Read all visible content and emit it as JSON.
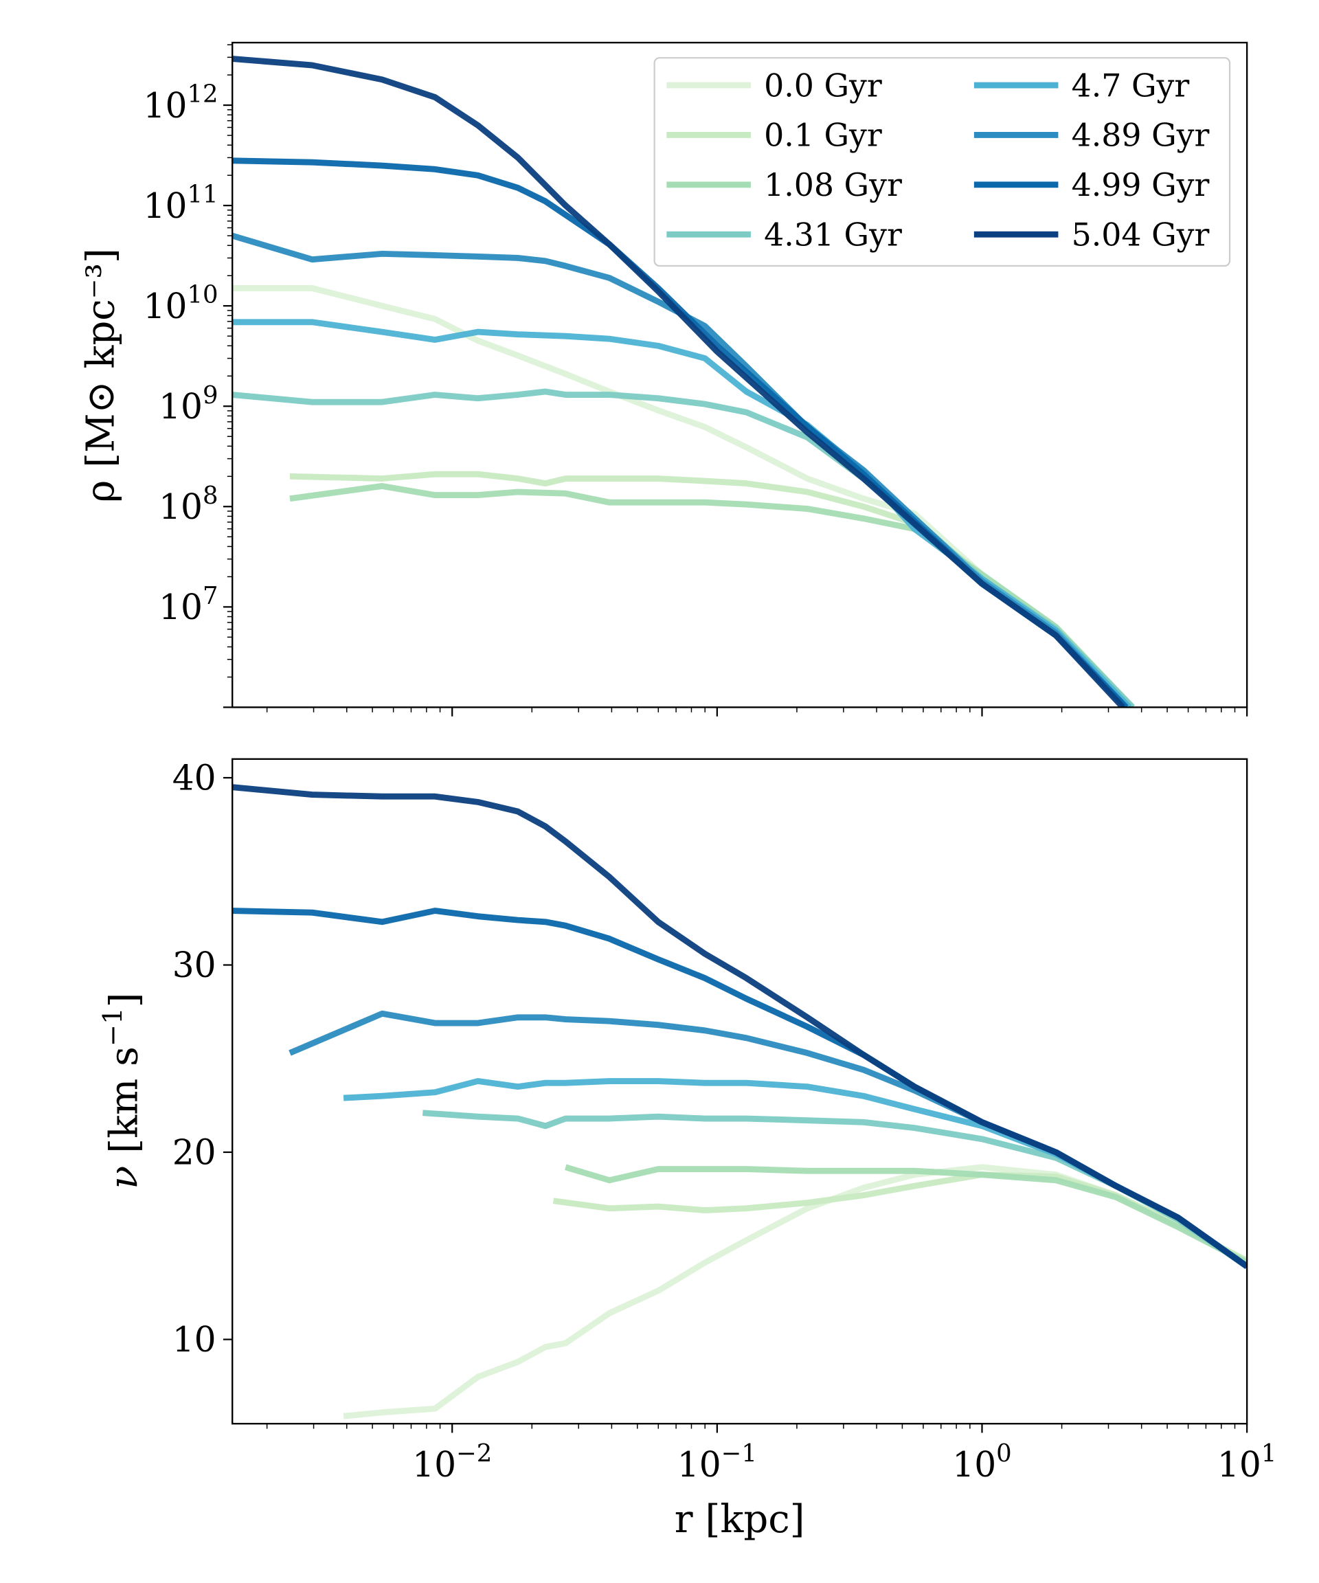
{
  "chart_data": [
    {
      "type": "line",
      "panel": "top",
      "xscale": "log",
      "yscale": "log",
      "xlim": [
        0.00148,
        10
      ],
      "ylim": [
        1000000.0,
        4200000000000.0
      ],
      "xlabel": "",
      "ylabel": "ρ [M⊙ kpc⁻³]",
      "ylabel_parts": {
        "sym": "ρ",
        "unit_open": " [M",
        "sun": "⊙",
        "unit_mid": " kpc",
        "exp": "−3",
        "unit_close": "]"
      },
      "xticks": [
        0.01,
        0.1,
        1,
        10
      ],
      "yticks": [
        {
          "value": 1000000000000.0,
          "base": "10",
          "exp": "12"
        },
        {
          "value": 100000000000.0,
          "base": "10",
          "exp": "11"
        },
        {
          "value": 10000000000.0,
          "base": "10",
          "exp": "10"
        },
        {
          "value": 1000000000.0,
          "base": "10",
          "exp": "9"
        },
        {
          "value": 100000000.0,
          "base": "10",
          "exp": "8"
        },
        {
          "value": 10000000.0,
          "base": "10",
          "exp": "7"
        }
      ],
      "legend": {
        "placement": "upper right",
        "columns": 2
      },
      "series": [
        {
          "name": "0.0 Gyr",
          "color": "#ddf2d8",
          "x": [
            0.00148,
            0.00296,
            0.00544,
            0.00861,
            0.0125,
            0.0177,
            0.0268,
            0.0392,
            0.0599,
            0.0899,
            0.129,
            0.219,
            0.357,
            0.556,
            1.0,
            1.9,
            3.7
          ],
          "y": [
            15000000000.0,
            15000000000.0,
            10000000000.0,
            7400000000.0,
            4500000000.0,
            3200000000.0,
            2100000000.0,
            1400000000.0,
            910000000.0,
            620000000.0,
            390000000.0,
            190000000.0,
            120000000.0,
            85000000.0,
            21000000.0,
            6000000.0,
            1000000.0
          ]
        },
        {
          "name": "0.1 Gyr",
          "color": "#c8eac2",
          "x": [
            0.00244,
            0.00544,
            0.00861,
            0.0125,
            0.0177,
            0.0225,
            0.0268,
            0.0392,
            0.0599,
            0.0899,
            0.129,
            0.219,
            0.357,
            0.556,
            1.0,
            1.9,
            3.7
          ],
          "y": [
            200000000.0,
            190000000.0,
            210000000.0,
            210000000.0,
            190000000.0,
            170000000.0,
            190000000.0,
            190000000.0,
            190000000.0,
            180000000.0,
            170000000.0,
            140000000.0,
            100000000.0,
            68000000.0,
            21000000.0,
            6300000.0,
            1000000.0
          ]
        },
        {
          "name": "1.08 Gyr",
          "color": "#a4dcb3",
          "x": [
            0.00244,
            0.00544,
            0.00861,
            0.0125,
            0.0177,
            0.0268,
            0.0392,
            0.0599,
            0.0899,
            0.129,
            0.219,
            0.357,
            0.556,
            1.0,
            1.9,
            3.7
          ],
          "y": [
            120000000.0,
            160000000.0,
            130000000.0,
            130000000.0,
            140000000.0,
            135000000.0,
            110000000.0,
            110000000.0,
            110000000.0,
            105000000.0,
            95000000.0,
            76000000.0,
            60000000.0,
            21000000.0,
            6300000.0,
            1000000.0
          ]
        },
        {
          "name": "4.31 Gyr",
          "color": "#7ccbc4",
          "x": [
            0.00148,
            0.00296,
            0.00544,
            0.00861,
            0.0125,
            0.0177,
            0.0225,
            0.0268,
            0.0392,
            0.0599,
            0.0899,
            0.129,
            0.219,
            0.357,
            0.556,
            1.0,
            1.9,
            3.7
          ],
          "y": [
            1300000000.0,
            1100000000.0,
            1100000000.0,
            1300000000.0,
            1200000000.0,
            1300000000.0,
            1400000000.0,
            1300000000.0,
            1300000000.0,
            1200000000.0,
            1050000000.0,
            870000000.0,
            490000000.0,
            190000000.0,
            76000000.0,
            19000000.0,
            6000000.0,
            1000000.0
          ]
        },
        {
          "name": "4.7 Gyr",
          "color": "#4cb2d4",
          "x": [
            0.00148,
            0.00296,
            0.00544,
            0.00861,
            0.0125,
            0.0177,
            0.0268,
            0.0392,
            0.0599,
            0.0899,
            0.129,
            0.219,
            0.357,
            0.556,
            1.0,
            1.9,
            3.6
          ],
          "y": [
            6900000000.0,
            6900000000.0,
            5500000000.0,
            4600000000.0,
            5500000000.0,
            5200000000.0,
            5000000000.0,
            4700000000.0,
            4000000000.0,
            3000000000.0,
            1400000000.0,
            650000000.0,
            220000000.0,
            60000000.0,
            19000000.0,
            5800000.0,
            1000000.0
          ]
        },
        {
          "name": "4.89 Gyr",
          "color": "#2a8cc0",
          "x": [
            0.00148,
            0.00296,
            0.00544,
            0.00861,
            0.0125,
            0.0177,
            0.0225,
            0.0268,
            0.0392,
            0.0599,
            0.0899,
            0.129,
            0.219,
            0.357,
            1.0,
            1.9,
            3.5
          ],
          "y": [
            50000000000.0,
            29000000000.0,
            33000000000.0,
            32000000000.0,
            31000000000.0,
            30000000000.0,
            28000000000.0,
            25000000000.0,
            19000000000.0,
            11000000000.0,
            6300000000.0,
            2500000000.0,
            620000000.0,
            230000000.0,
            18000000.0,
            5500000.0,
            1000000.0
          ]
        },
        {
          "name": "4.99 Gyr",
          "color": "#0a68ab",
          "x": [
            0.00148,
            0.00296,
            0.00544,
            0.00861,
            0.0125,
            0.0177,
            0.0225,
            0.0392,
            0.0599,
            0.1,
            0.219,
            0.357,
            1.0,
            1.9,
            3.5
          ],
          "y": [
            280000000000.0,
            270000000000.0,
            250000000000.0,
            230000000000.0,
            200000000000.0,
            150000000000.0,
            110000000000.0,
            41000000000.0,
            15000000000.0,
            4000000000.0,
            630000000.0,
            210000000.0,
            17000000.0,
            5200000.0,
            1000000.0
          ]
        },
        {
          "name": "5.04 Gyr",
          "color": "#0a3f80",
          "x": [
            0.00148,
            0.00296,
            0.00544,
            0.00861,
            0.0125,
            0.0177,
            0.0268,
            0.0392,
            0.0599,
            0.1,
            0.219,
            0.357,
            1.0,
            1.9,
            3.4
          ],
          "y": [
            2900000000000.0,
            2500000000000.0,
            1800000000000.0,
            1200000000000.0,
            630000000000.0,
            300000000000.0,
            100000000000.0,
            41000000000.0,
            14000000000.0,
            3500000000.0,
            550000000.0,
            190000000.0,
            17000000.0,
            5200000.0,
            1000000.0
          ]
        }
      ]
    },
    {
      "type": "line",
      "panel": "bottom",
      "xscale": "log",
      "yscale": "linear",
      "xlim": [
        0.00148,
        10
      ],
      "ylim": [
        5.5,
        41.0
      ],
      "xlabel": "r [kpc]",
      "ylabel": "ν [km s⁻¹]",
      "ylabel_parts": {
        "sym": "ν",
        "unit_open": " [km s",
        "exp": "−1",
        "unit_close": "]"
      },
      "xticks": [
        {
          "value": 0.01,
          "base": "10",
          "exp": "−2"
        },
        {
          "value": 0.1,
          "base": "10",
          "exp": "−1"
        },
        {
          "value": 1,
          "base": "10",
          "exp": "0"
        },
        {
          "value": 10,
          "base": "10",
          "exp": "1"
        }
      ],
      "yticks": [
        {
          "value": 10,
          "label": "10"
        },
        {
          "value": 20,
          "label": "20"
        },
        {
          "value": 30,
          "label": "30"
        },
        {
          "value": 40,
          "label": "40"
        }
      ],
      "series": [
        {
          "name": "0.0 Gyr",
          "x": [
            0.00389,
            0.00544,
            0.00861,
            0.0125,
            0.0177,
            0.0225,
            0.0268,
            0.0392,
            0.0599,
            0.0899,
            0.129,
            0.219,
            0.357,
            0.556,
            1.0,
            1.9,
            3.2,
            5.5,
            10
          ],
          "y": [
            5.9,
            6.1,
            6.3,
            8.0,
            8.8,
            9.6,
            9.8,
            11.4,
            12.6,
            14.1,
            15.3,
            17.0,
            18.1,
            18.8,
            19.2,
            18.8,
            17.7,
            16.1,
            14.2
          ]
        },
        {
          "name": "0.1 Gyr",
          "x": [
            0.0241,
            0.0392,
            0.0599,
            0.0899,
            0.129,
            0.219,
            0.357,
            0.556,
            1.0,
            1.9,
            3.2,
            5.5,
            10
          ],
          "y": [
            17.4,
            17.0,
            17.1,
            16.9,
            17.0,
            17.3,
            17.7,
            18.2,
            18.8,
            18.7,
            17.7,
            16.1,
            14.2
          ]
        },
        {
          "name": "1.08 Gyr",
          "x": [
            0.0268,
            0.0392,
            0.0599,
            0.0899,
            0.129,
            0.219,
            0.357,
            0.556,
            1.0,
            1.9,
            3.2,
            5.5,
            10
          ],
          "y": [
            19.2,
            18.5,
            19.1,
            19.1,
            19.1,
            19.0,
            19.0,
            19.0,
            18.8,
            18.5,
            17.6,
            16.0,
            14.1
          ]
        },
        {
          "name": "4.31 Gyr",
          "x": [
            0.00774,
            0.0125,
            0.0177,
            0.0225,
            0.0268,
            0.0392,
            0.0599,
            0.0899,
            0.129,
            0.219,
            0.357,
            0.556,
            1.0,
            1.9,
            3.2,
            5.5,
            10
          ],
          "y": [
            22.1,
            21.9,
            21.8,
            21.4,
            21.8,
            21.8,
            21.9,
            21.8,
            21.8,
            21.7,
            21.6,
            21.3,
            20.7,
            19.7,
            18.2,
            16.4,
            13.9
          ]
        },
        {
          "name": "4.7 Gyr",
          "x": [
            0.00389,
            0.00544,
            0.00861,
            0.0125,
            0.0177,
            0.0225,
            0.0268,
            0.0392,
            0.0599,
            0.0899,
            0.129,
            0.219,
            0.357,
            0.556,
            1.0,
            1.9,
            3.2,
            5.5,
            10
          ],
          "y": [
            22.9,
            23.0,
            23.2,
            23.8,
            23.5,
            23.7,
            23.7,
            23.8,
            23.8,
            23.7,
            23.7,
            23.5,
            23.0,
            22.3,
            21.4,
            19.9,
            18.2,
            16.5,
            13.9
          ]
        },
        {
          "name": "4.89 Gyr",
          "x": [
            0.00244,
            0.00544,
            0.00861,
            0.0125,
            0.0177,
            0.0225,
            0.0268,
            0.0392,
            0.0599,
            0.0899,
            0.129,
            0.219,
            0.357,
            0.556,
            1.0,
            1.9,
            3.2,
            5.5,
            10
          ],
          "y": [
            25.3,
            27.4,
            26.9,
            26.9,
            27.2,
            27.2,
            27.1,
            27.0,
            26.8,
            26.5,
            26.1,
            25.3,
            24.4,
            23.3,
            21.6,
            20.0,
            18.2,
            16.5,
            13.9
          ]
        },
        {
          "name": "4.99 Gyr",
          "x": [
            0.00148,
            0.00296,
            0.00544,
            0.00861,
            0.0125,
            0.0177,
            0.0225,
            0.0268,
            0.0392,
            0.0599,
            0.0899,
            0.129,
            0.219,
            0.357,
            0.556,
            1.0,
            1.9,
            3.2,
            5.5,
            10
          ],
          "y": [
            32.9,
            32.8,
            32.3,
            32.9,
            32.6,
            32.4,
            32.3,
            32.1,
            31.4,
            30.3,
            29.3,
            28.2,
            26.7,
            25.2,
            23.5,
            21.6,
            20.0,
            18.2,
            16.5,
            13.9
          ]
        },
        {
          "name": "5.04 Gyr",
          "x": [
            0.00148,
            0.00296,
            0.00544,
            0.00861,
            0.0125,
            0.0177,
            0.0225,
            0.0268,
            0.0392,
            0.0599,
            0.0899,
            0.129,
            0.219,
            0.357,
            0.556,
            1.0,
            1.9,
            3.2,
            5.5,
            10
          ],
          "y": [
            39.5,
            39.1,
            39.0,
            39.0,
            38.7,
            38.2,
            37.4,
            36.6,
            34.7,
            32.3,
            30.6,
            29.3,
            27.2,
            25.2,
            23.5,
            21.6,
            20.0,
            18.2,
            16.5,
            13.9
          ]
        }
      ]
    }
  ]
}
